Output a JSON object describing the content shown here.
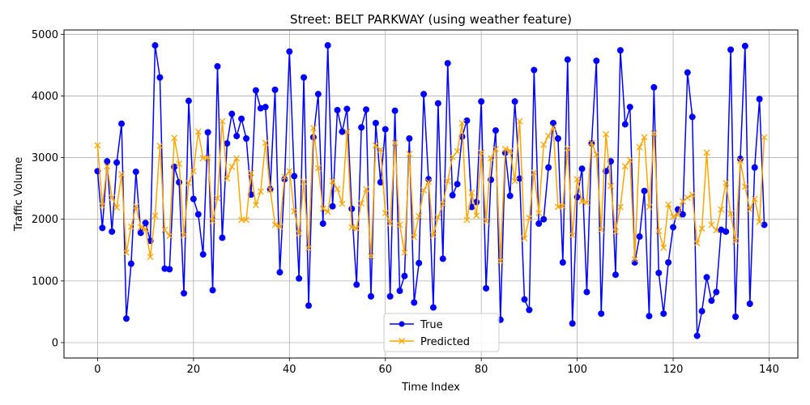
{
  "chart_data": {
    "type": "line",
    "title": "Street: BELT PARKWAY (using weather feature)",
    "xlabel": "Time Index",
    "ylabel": "Traffic Volume",
    "xlim": [
      -7,
      146
    ],
    "ylim": [
      -250,
      5070
    ],
    "xticks": [
      0,
      20,
      40,
      60,
      80,
      100,
      120,
      140
    ],
    "yticks": [
      0,
      1000,
      2000,
      3000,
      4000,
      5000
    ],
    "grid": true,
    "legend_position": "bottom-center",
    "x": [
      0,
      1,
      2,
      3,
      4,
      5,
      6,
      7,
      8,
      9,
      10,
      11,
      12,
      13,
      14,
      15,
      16,
      17,
      18,
      19,
      20,
      21,
      22,
      23,
      24,
      25,
      26,
      27,
      28,
      29,
      30,
      31,
      32,
      33,
      34,
      35,
      36,
      37,
      38,
      39,
      40,
      41,
      42,
      43,
      44,
      45,
      46,
      47,
      48,
      49,
      50,
      51,
      52,
      53,
      54,
      55,
      56,
      57,
      58,
      59,
      60,
      61,
      62,
      63,
      64,
      65,
      66,
      67,
      68,
      69,
      70,
      71,
      72,
      73,
      74,
      75,
      76,
      77,
      78,
      79,
      80,
      81,
      82,
      83,
      84,
      85,
      86,
      87,
      88,
      89,
      90,
      91,
      92,
      93,
      94,
      95,
      96,
      97,
      98,
      99,
      100,
      101,
      102,
      103,
      104,
      105,
      106,
      107,
      108,
      109,
      110,
      111,
      112,
      113,
      114,
      115,
      116,
      117,
      118,
      119,
      120,
      121,
      122,
      123,
      124,
      125,
      126,
      127,
      128,
      129,
      130,
      131,
      132,
      133,
      134,
      135,
      136,
      137,
      138,
      139
    ],
    "series": [
      {
        "name": "True",
        "color": "#0000ff",
        "marker": "circle",
        "values": [
          2780,
          1860,
          2940,
          1800,
          2920,
          3550,
          390,
          1280,
          2770,
          1780,
          1940,
          1650,
          4820,
          4300,
          1200,
          1190,
          2850,
          2600,
          800,
          3920,
          2330,
          2080,
          1430,
          3410,
          850,
          4480,
          1700,
          3230,
          3710,
          3350,
          3630,
          3310,
          2400,
          4090,
          3800,
          3820,
          2490,
          4100,
          1140,
          2650,
          4720,
          2700,
          1040,
          4300,
          600,
          3330,
          4030,
          1930,
          4820,
          2210,
          3770,
          3420,
          3790,
          2170,
          940,
          3490,
          3780,
          750,
          3560,
          2600,
          3460,
          750,
          3760,
          840,
          1080,
          3310,
          650,
          1290,
          4030,
          2650,
          570,
          3880,
          1360,
          4530,
          2390,
          2570,
          3340,
          3600,
          2200,
          2280,
          3910,
          880,
          2640,
          3440,
          370,
          3080,
          2380,
          3910,
          2660,
          700,
          530,
          4420,
          1930,
          2000,
          2840,
          3560,
          3310,
          1300,
          4590,
          310,
          2360,
          2820,
          820,
          3230,
          4570,
          470,
          2780,
          2940,
          1100,
          4740,
          3540,
          3820,
          1300,
          1720,
          2460,
          430,
          4140,
          1130,
          470,
          1300,
          1870,
          2160,
          2080,
          4380,
          3660,
          110,
          510,
          1060,
          680,
          820,
          1830,
          1800,
          4750,
          420,
          2980,
          4810,
          630,
          2840,
          3950,
          1910
        ]
      },
      {
        "name": "Predicted",
        "color": "#ffa500",
        "marker": "x",
        "values": [
          3200,
          2220,
          2860,
          2350,
          2190,
          2730,
          1460,
          1880,
          2210,
          1870,
          1840,
          1390,
          2060,
          3190,
          1830,
          1730,
          3320,
          2900,
          1740,
          2590,
          2780,
          3420,
          2990,
          3000,
          1970,
          2340,
          3590,
          2660,
          2850,
          2990,
          1990,
          1990,
          2750,
          2230,
          2450,
          3240,
          2480,
          1910,
          1880,
          2690,
          2780,
          2130,
          1770,
          2610,
          1530,
          3480,
          2830,
          2170,
          2120,
          2620,
          2490,
          2250,
          3420,
          1870,
          1850,
          2260,
          2490,
          1400,
          3200,
          3130,
          2100,
          1930,
          3240,
          1910,
          1460,
          3060,
          1710,
          2050,
          2470,
          2610,
          1740,
          2030,
          2250,
          2620,
          3010,
          3100,
          3560,
          1990,
          2430,
          2060,
          3080,
          1970,
          2990,
          3140,
          1320,
          3140,
          3110,
          2620,
          3590,
          1690,
          2020,
          2760,
          2100,
          3210,
          3350,
          3490,
          2200,
          2210,
          3150,
          1740,
          2650,
          2290,
          2270,
          3240,
          3050,
          1830,
          3380,
          2540,
          1800,
          2200,
          2860,
          2960,
          1350,
          3170,
          3330,
          2200,
          3390,
          1810,
          1540,
          2240,
          2040,
          2070,
          2290,
          2350,
          2400,
          1610,
          1850,
          3080,
          1910,
          1820,
          2160,
          2590,
          2090,
          1650,
          2950,
          2530,
          2160,
          2330,
          1960,
          3330
        ]
      }
    ]
  }
}
